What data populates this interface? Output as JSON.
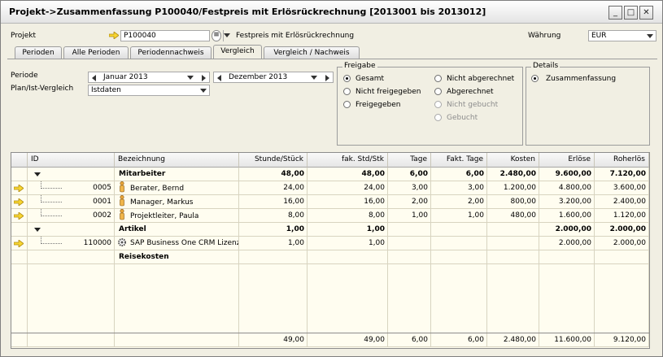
{
  "window": {
    "title": "Projekt->Zusammenfassung P100040/Festpreis mit Erlösrückrechnung [2013001 bis 2013012]",
    "buttons": [
      "_",
      "□",
      "✕"
    ]
  },
  "header": {
    "projekt_label": "Projekt",
    "projekt_value": "P100040",
    "projekt_desc": "Festpreis mit Erlösrückrechnung",
    "waehrung_label": "Währung",
    "waehrung_value": "EUR"
  },
  "tabs": [
    {
      "label": "Perioden"
    },
    {
      "label": "Alle Perioden"
    },
    {
      "label": "Periodennachweis"
    },
    {
      "label": "Vergleich",
      "active": true
    },
    {
      "label": "Vergleich / Nachweis"
    }
  ],
  "filters": {
    "periode_label": "Periode",
    "periode_from": "Januar 2013",
    "periode_to": "Dezember 2013",
    "planist_label": "Plan/Ist-Vergleich",
    "planist_value": "Istdaten"
  },
  "freigabe": {
    "title": "Freigabe",
    "options": [
      {
        "label": "Gesamt",
        "selected": true,
        "disabled": false
      },
      {
        "label": "Nicht freigegeben",
        "selected": false,
        "disabled": false
      },
      {
        "label": "Freigegeben",
        "selected": false,
        "disabled": false
      },
      {
        "label": "Nicht abgerechnet",
        "selected": false,
        "disabled": false
      },
      {
        "label": "Abgerechnet",
        "selected": false,
        "disabled": false
      },
      {
        "label": "Nicht gebucht",
        "selected": false,
        "disabled": true
      },
      {
        "label": "Gebucht",
        "selected": false,
        "disabled": true
      }
    ]
  },
  "details": {
    "title": "Details",
    "option": "Zusammenfassung"
  },
  "grid": {
    "columns": [
      "ID",
      "Bezeichnung",
      "Stunde/Stück",
      "fak. Std/Stk",
      "Tage",
      "Fakt. Tage",
      "Kosten",
      "Erlöse",
      "Roherlös"
    ],
    "rows": [
      {
        "type": "group",
        "id": "",
        "name": "Mitarbeiter",
        "values": [
          "48,00",
          "48,00",
          "6,00",
          "6,00",
          "2.480,00",
          "9.600,00",
          "7.120,00"
        ]
      },
      {
        "type": "person",
        "id": "0005",
        "name": "Berater, Bernd",
        "values": [
          "24,00",
          "24,00",
          "3,00",
          "3,00",
          "1.200,00",
          "4.800,00",
          "3.600,00"
        ]
      },
      {
        "type": "person",
        "id": "0001",
        "name": "Manager, Markus",
        "values": [
          "16,00",
          "16,00",
          "2,00",
          "2,00",
          "800,00",
          "3.200,00",
          "2.400,00"
        ]
      },
      {
        "type": "person",
        "id": "0002",
        "name": "Projektleiter, Paula",
        "values": [
          "8,00",
          "8,00",
          "1,00",
          "1,00",
          "480,00",
          "1.600,00",
          "1.120,00"
        ]
      },
      {
        "type": "group",
        "id": "",
        "name": "Artikel",
        "values": [
          "1,00",
          "1,00",
          "",
          "",
          "",
          "2.000,00",
          "2.000,00"
        ]
      },
      {
        "type": "item",
        "id": "110000",
        "name": "SAP Business One CRM Lizenz",
        "values": [
          "1,00",
          "1,00",
          "",
          "",
          "",
          "2.000,00",
          "2.000,00"
        ]
      },
      {
        "type": "group-empty",
        "id": "",
        "name": "Reisekosten",
        "values": [
          "",
          "",
          "",
          "",
          "",
          "",
          ""
        ]
      }
    ],
    "totals": [
      "49,00",
      "49,00",
      "6,00",
      "6,00",
      "2.480,00",
      "11.600,00",
      "9.120,00"
    ]
  }
}
